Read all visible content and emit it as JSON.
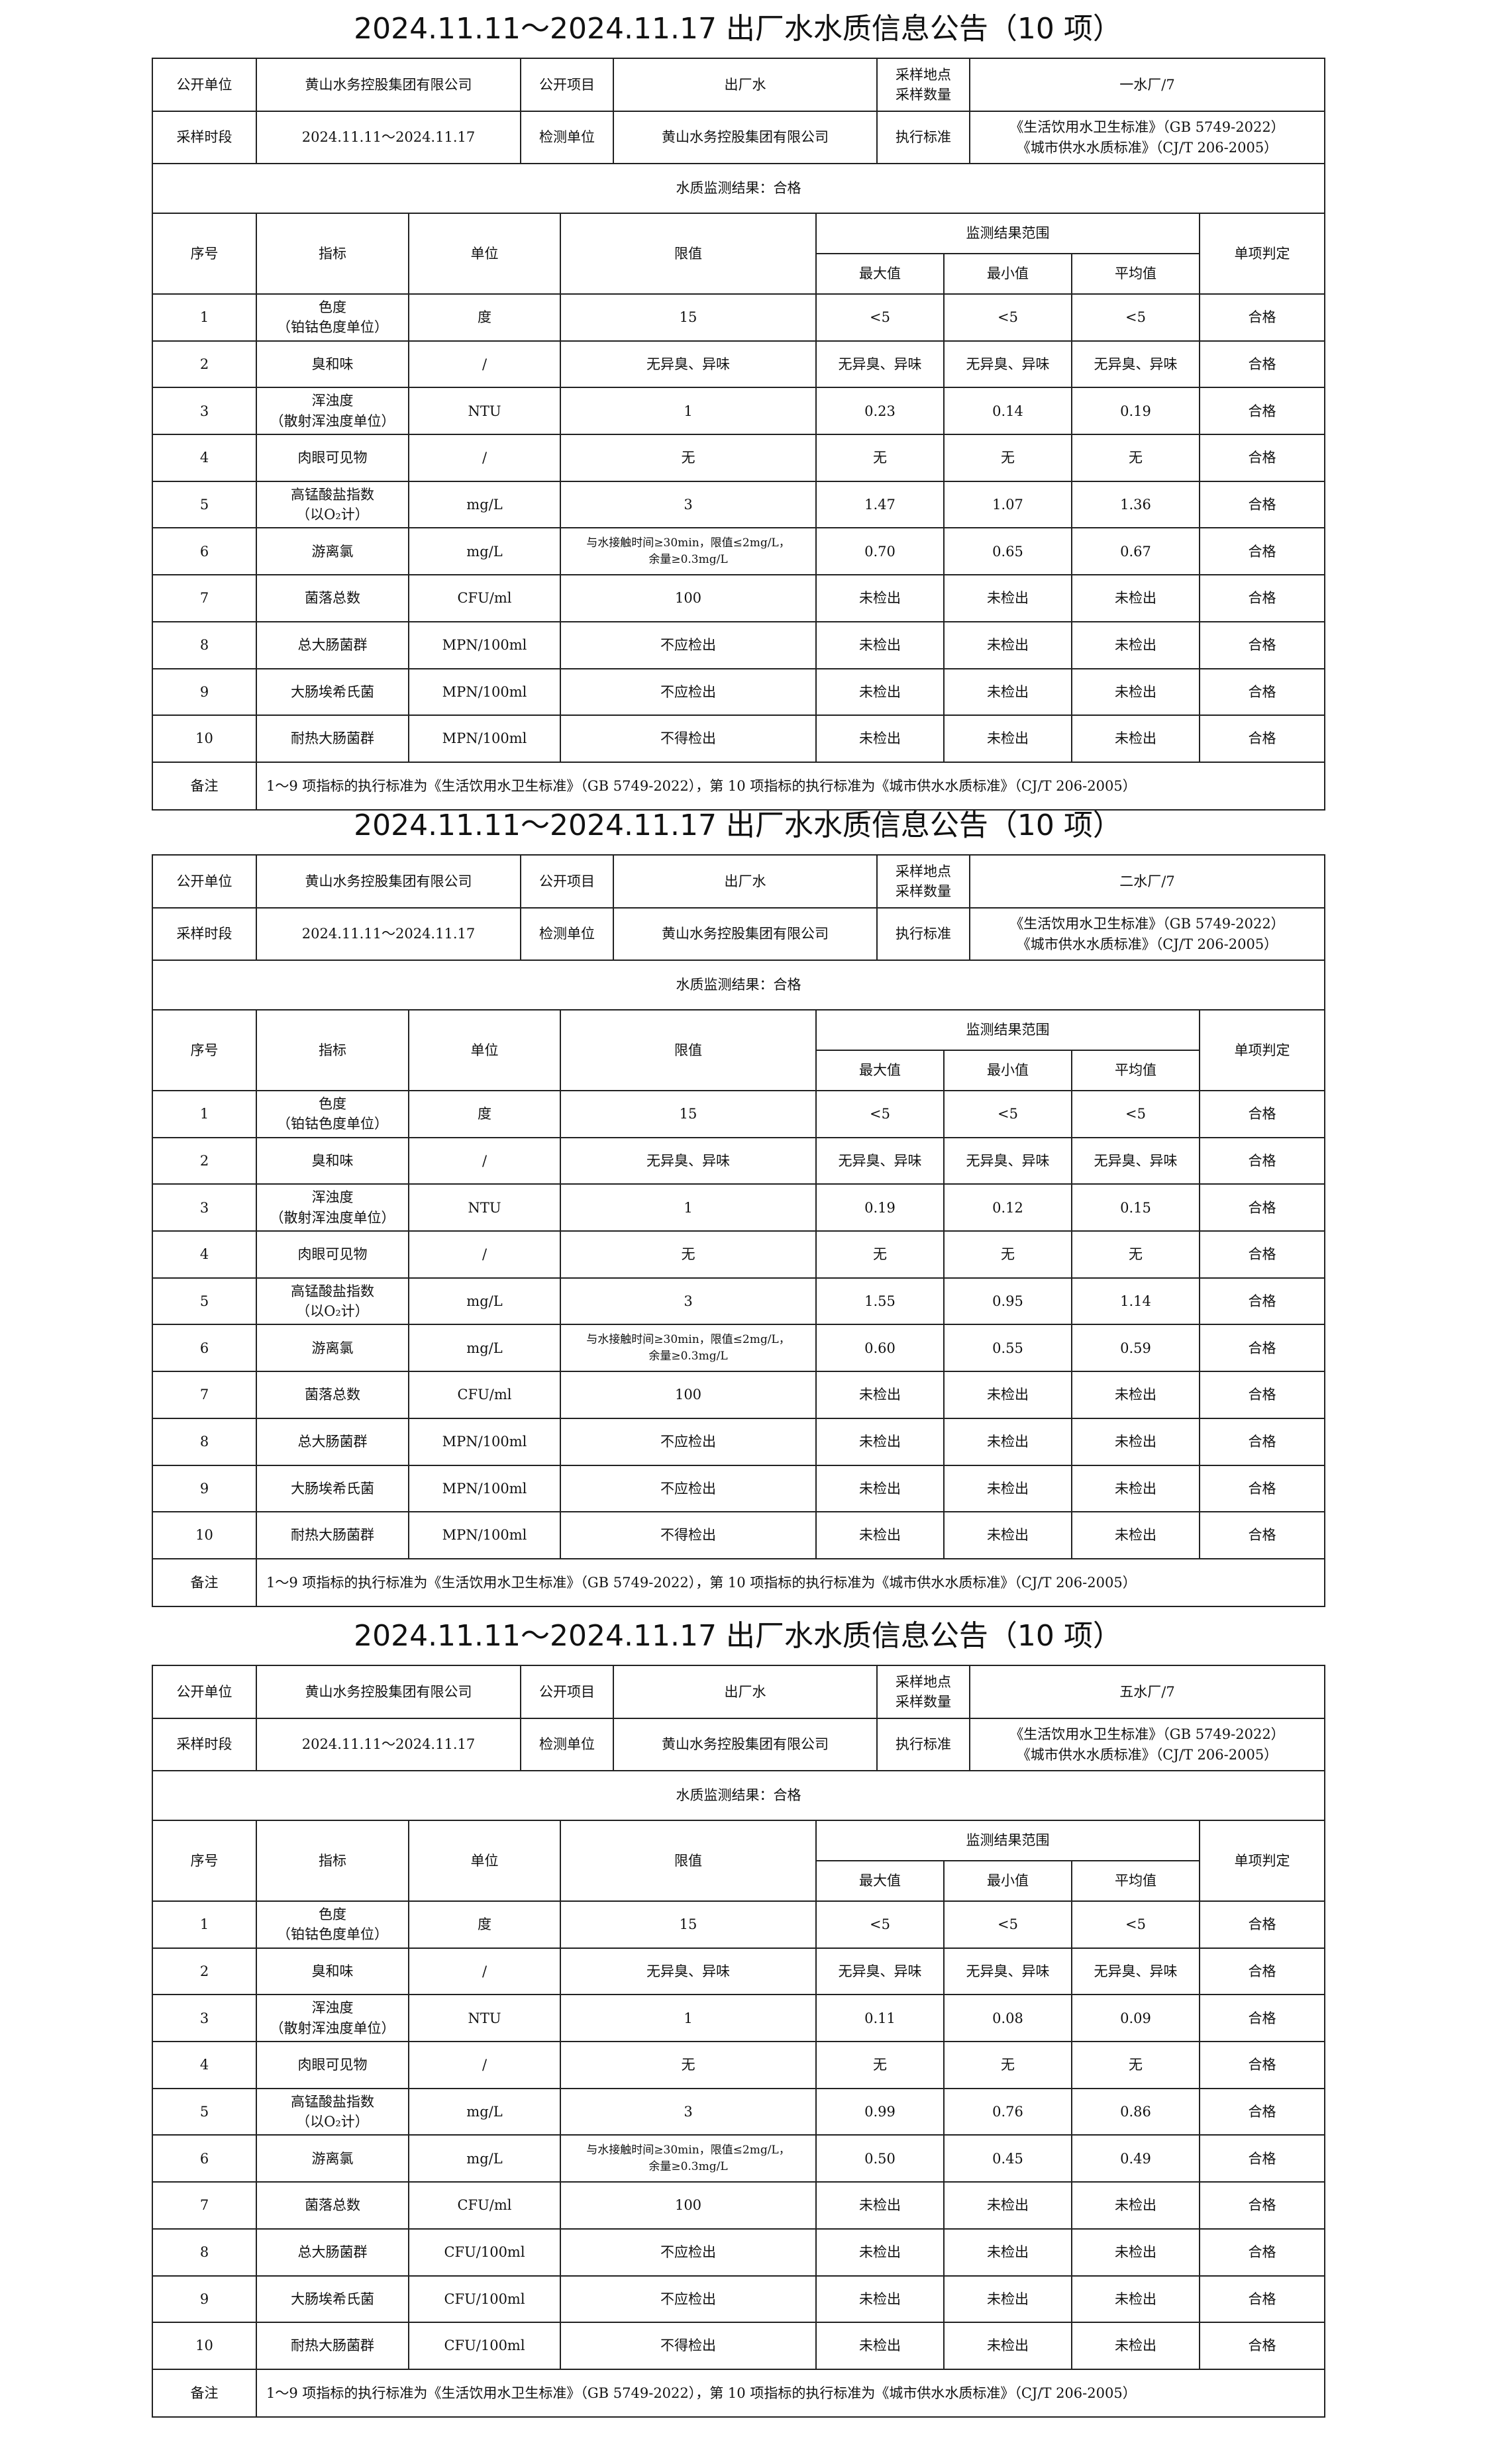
{
  "labels": {
    "publisher": "公开单位",
    "item": "公开项目",
    "sampling_site": "采样地点\n采样数量",
    "period": "采样时段",
    "lab": "检测单位",
    "standard": "执行标准",
    "seq": "序号",
    "indicator": "指标",
    "unit": "单位",
    "limit": "限值",
    "range": "监测结果范围",
    "max": "最大值",
    "min": "最小值",
    "avg": "平均值",
    "verdict": "单项判定",
    "remark": "备注"
  },
  "reports": [
    {
      "title": "2024.11.11～2024.11.17 出厂水水质信息公告（10 项）",
      "publisher": "黄山水务控股集团有限公司",
      "item": "出厂水",
      "site": "一水厂/7",
      "period": "2024.11.11～2024.11.17",
      "lab": "黄山水务控股集团有限公司",
      "standard": "《生活饮用水卫生标准》（GB 5749-2022）\n《城市供水水质标准》（CJ/T 206-2005）",
      "result": "水质监测结果：合格",
      "rows": [
        [
          "1",
          "色度\n（铂钴色度单位）",
          "度",
          "15",
          "<5",
          "<5",
          "<5",
          "合格"
        ],
        [
          "2",
          "臭和味",
          "/",
          "无异臭、异味",
          "无异臭、异味",
          "无异臭、异味",
          "无异臭、异味",
          "合格"
        ],
        [
          "3",
          "浑浊度\n（散射浑浊度单位）",
          "NTU",
          "1",
          "0.23",
          "0.14",
          "0.19",
          "合格"
        ],
        [
          "4",
          "肉眼可见物",
          "/",
          "无",
          "无",
          "无",
          "无",
          "合格"
        ],
        [
          "5",
          "高锰酸盐指数\n（以O₂计）",
          "mg/L",
          "3",
          "1.47",
          "1.07",
          "1.36",
          "合格"
        ],
        [
          "6",
          "游离氯",
          "mg/L",
          "与水接触时间≥30min，限值≤2mg/L，\n余量≥0.3mg/L",
          "0.70",
          "0.65",
          "0.67",
          "合格"
        ],
        [
          "7",
          "菌落总数",
          "CFU/ml",
          "100",
          "未检出",
          "未检出",
          "未检出",
          "合格"
        ],
        [
          "8",
          "总大肠菌群",
          "MPN/100ml",
          "不应检出",
          "未检出",
          "未检出",
          "未检出",
          "合格"
        ],
        [
          "9",
          "大肠埃希氏菌",
          "MPN/100ml",
          "不应检出",
          "未检出",
          "未检出",
          "未检出",
          "合格"
        ],
        [
          "10",
          "耐热大肠菌群",
          "MPN/100ml",
          "不得检出",
          "未检出",
          "未检出",
          "未检出",
          "合格"
        ]
      ],
      "remark": "1～9 项指标的执行标准为《生活饮用水卫生标准》（GB 5749-2022），第 10 项指标的执行标准为《城市供水水质标准》（CJ/T 206-2005）"
    },
    {
      "title": "2024.11.11～2024.11.17 出厂水水质信息公告（10 项）",
      "publisher": "黄山水务控股集团有限公司",
      "item": "出厂水",
      "site": "二水厂/7",
      "period": "2024.11.11～2024.11.17",
      "lab": "黄山水务控股集团有限公司",
      "standard": "《生活饮用水卫生标准》（GB 5749-2022）\n《城市供水水质标准》（CJ/T 206-2005）",
      "result": "水质监测结果：合格",
      "rows": [
        [
          "1",
          "色度\n（铂钴色度单位）",
          "度",
          "15",
          "<5",
          "<5",
          "<5",
          "合格"
        ],
        [
          "2",
          "臭和味",
          "/",
          "无异臭、异味",
          "无异臭、异味",
          "无异臭、异味",
          "无异臭、异味",
          "合格"
        ],
        [
          "3",
          "浑浊度\n（散射浑浊度单位）",
          "NTU",
          "1",
          "0.19",
          "0.12",
          "0.15",
          "合格"
        ],
        [
          "4",
          "肉眼可见物",
          "/",
          "无",
          "无",
          "无",
          "无",
          "合格"
        ],
        [
          "5",
          "高锰酸盐指数\n（以O₂计）",
          "mg/L",
          "3",
          "1.55",
          "0.95",
          "1.14",
          "合格"
        ],
        [
          "6",
          "游离氯",
          "mg/L",
          "与水接触时间≥30min，限值≤2mg/L，\n余量≥0.3mg/L",
          "0.60",
          "0.55",
          "0.59",
          "合格"
        ],
        [
          "7",
          "菌落总数",
          "CFU/ml",
          "100",
          "未检出",
          "未检出",
          "未检出",
          "合格"
        ],
        [
          "8",
          "总大肠菌群",
          "MPN/100ml",
          "不应检出",
          "未检出",
          "未检出",
          "未检出",
          "合格"
        ],
        [
          "9",
          "大肠埃希氏菌",
          "MPN/100ml",
          "不应检出",
          "未检出",
          "未检出",
          "未检出",
          "合格"
        ],
        [
          "10",
          "耐热大肠菌群",
          "MPN/100ml",
          "不得检出",
          "未检出",
          "未检出",
          "未检出",
          "合格"
        ]
      ],
      "remark": "1～9 项指标的执行标准为《生活饮用水卫生标准》（GB 5749-2022），第 10 项指标的执行标准为《城市供水水质标准》（CJ/T 206-2005）"
    },
    {
      "title": "2024.11.11～2024.11.17 出厂水水质信息公告（10 项）",
      "publisher": "黄山水务控股集团有限公司",
      "item": "出厂水",
      "site": "五水厂/7",
      "period": "2024.11.11～2024.11.17",
      "lab": "黄山水务控股集团有限公司",
      "standard": "《生活饮用水卫生标准》（GB 5749-2022）\n《城市供水水质标准》（CJ/T 206-2005）",
      "result": "水质监测结果：合格",
      "rows": [
        [
          "1",
          "色度\n（铂钴色度单位）",
          "度",
          "15",
          "<5",
          "<5",
          "<5",
          "合格"
        ],
        [
          "2",
          "臭和味",
          "/",
          "无异臭、异味",
          "无异臭、异味",
          "无异臭、异味",
          "无异臭、异味",
          "合格"
        ],
        [
          "3",
          "浑浊度\n（散射浑浊度单位）",
          "NTU",
          "1",
          "0.11",
          "0.08",
          "0.09",
          "合格"
        ],
        [
          "4",
          "肉眼可见物",
          "/",
          "无",
          "无",
          "无",
          "无",
          "合格"
        ],
        [
          "5",
          "高锰酸盐指数\n（以O₂计）",
          "mg/L",
          "3",
          "0.99",
          "0.76",
          "0.86",
          "合格"
        ],
        [
          "6",
          "游离氯",
          "mg/L",
          "与水接触时间≥30min，限值≤2mg/L，\n余量≥0.3mg/L",
          "0.50",
          "0.45",
          "0.49",
          "合格"
        ],
        [
          "7",
          "菌落总数",
          "CFU/ml",
          "100",
          "未检出",
          "未检出",
          "未检出",
          "合格"
        ],
        [
          "8",
          "总大肠菌群",
          "CFU/100ml",
          "不应检出",
          "未检出",
          "未检出",
          "未检出",
          "合格"
        ],
        [
          "9",
          "大肠埃希氏菌",
          "CFU/100ml",
          "不应检出",
          "未检出",
          "未检出",
          "未检出",
          "合格"
        ],
        [
          "10",
          "耐热大肠菌群",
          "CFU/100ml",
          "不得检出",
          "未检出",
          "未检出",
          "未检出",
          "合格"
        ]
      ],
      "remark": "1～9 项指标的执行标准为《生活饮用水卫生标准》（GB 5749-2022），第 10 项指标的执行标准为《城市供水水质标准》（CJ/T 206-2005）"
    }
  ]
}
